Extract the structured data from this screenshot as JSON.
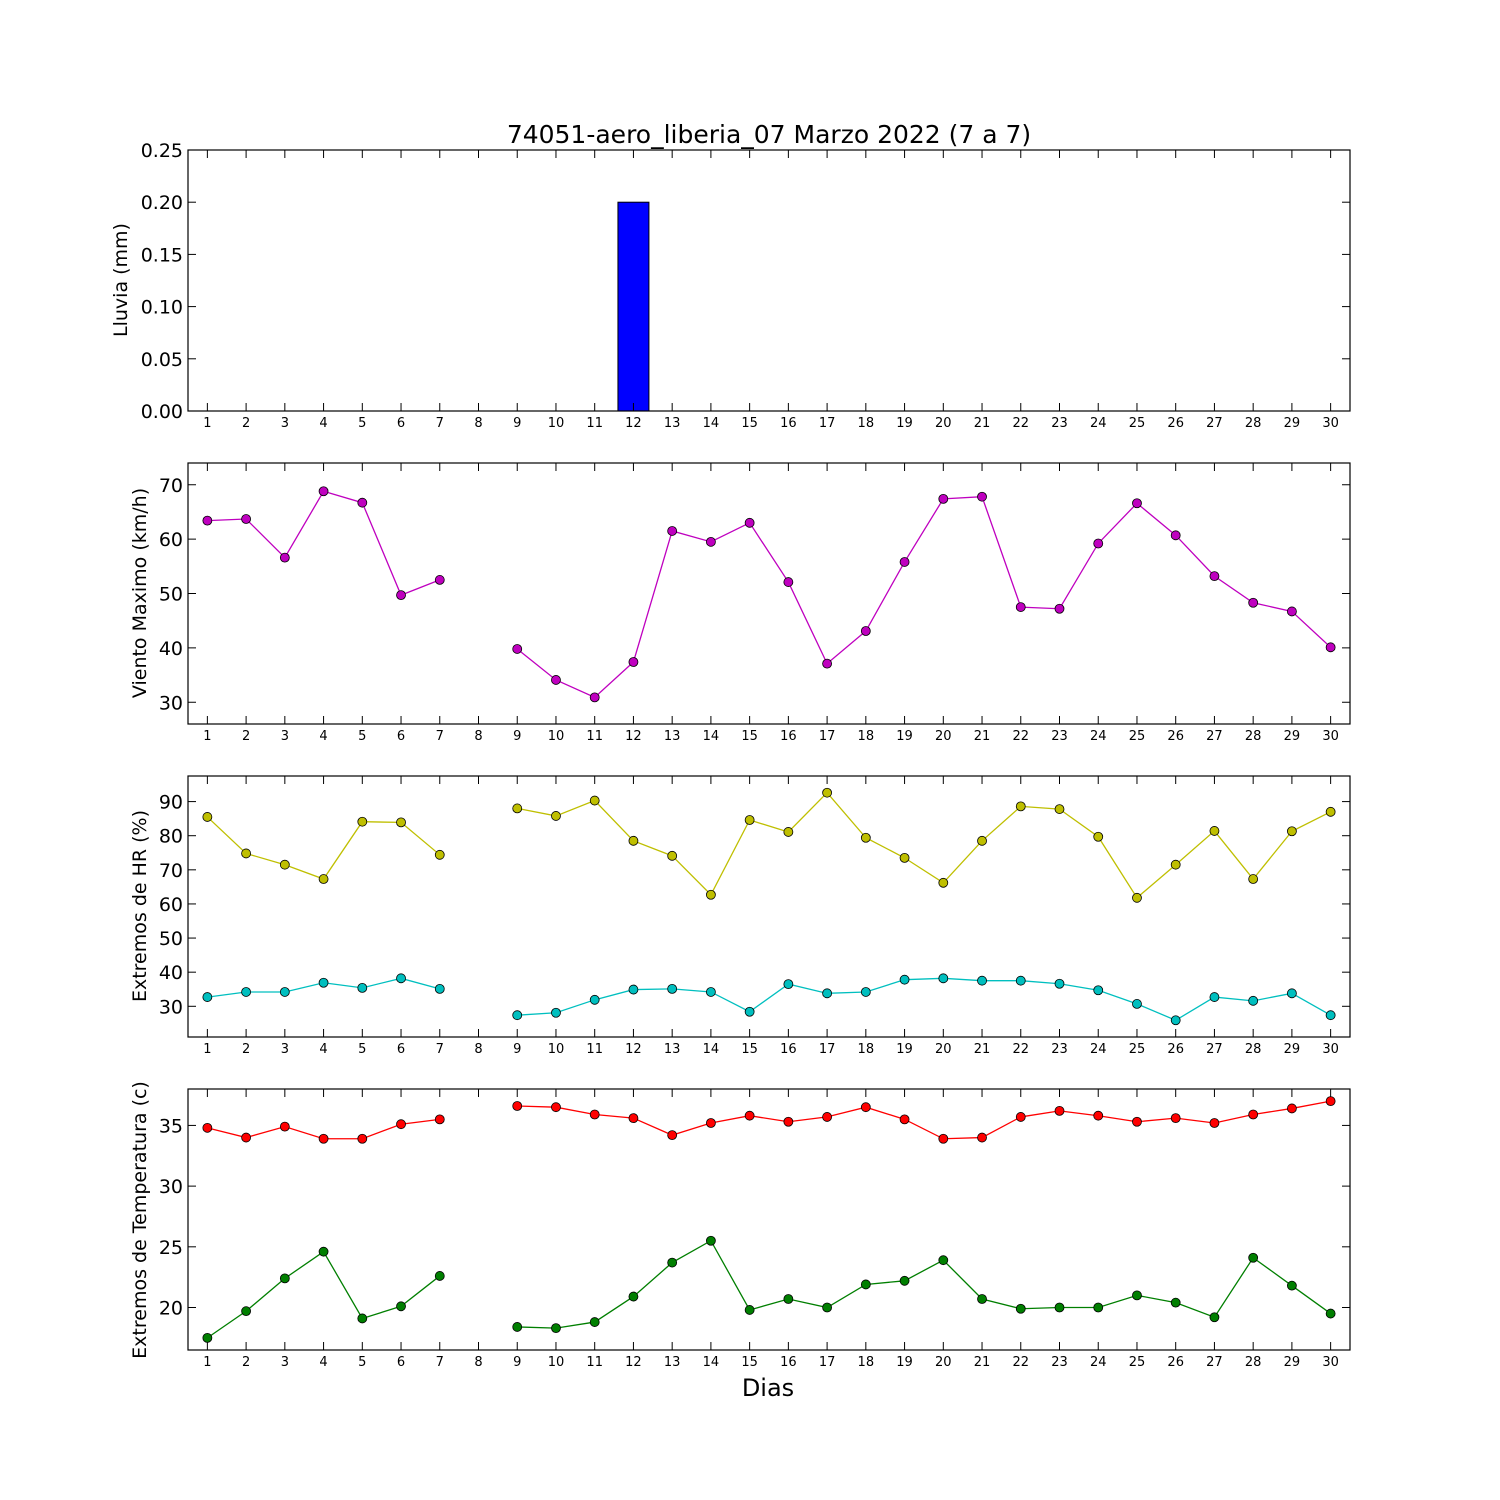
{
  "chart_data": [
    {
      "type": "bar",
      "title": "74051-aero_liberia_07 Marzo 2022  (7 a 7)",
      "ylabel": "Lluvia (mm)",
      "xlim": [
        0.5,
        30.5
      ],
      "ylim": [
        0,
        0.25
      ],
      "yticks": [
        "0.00",
        "0.05",
        "0.10",
        "0.15",
        "0.20",
        "0.25"
      ],
      "x": [
        1,
        2,
        3,
        4,
        5,
        6,
        7,
        8,
        9,
        10,
        11,
        12,
        13,
        14,
        15,
        16,
        17,
        18,
        19,
        20,
        21,
        22,
        23,
        24,
        25,
        26,
        27,
        28,
        29,
        30
      ],
      "series": [
        {
          "color": "#0000ff",
          "values": [
            0,
            0,
            0,
            0,
            0,
            0,
            0,
            0,
            0,
            0,
            0,
            0.2,
            0,
            0,
            0,
            0,
            0,
            0,
            0,
            0,
            0,
            0,
            0,
            0,
            0,
            0,
            0,
            0,
            0,
            0
          ]
        }
      ]
    },
    {
      "type": "line",
      "ylabel": "Viento Maximo (km/h)",
      "xlim": [
        0.5,
        30.5
      ],
      "ylim": [
        26,
        74
      ],
      "yticks": [
        "30",
        "40",
        "50",
        "60",
        "70"
      ],
      "x": [
        1,
        2,
        3,
        4,
        5,
        6,
        7,
        8,
        9,
        10,
        11,
        12,
        13,
        14,
        15,
        16,
        17,
        18,
        19,
        20,
        21,
        22,
        23,
        24,
        25,
        26,
        27,
        28,
        29,
        30
      ],
      "series": [
        {
          "color": "#bf00bf",
          "values": [
            63.4,
            63.7,
            56.6,
            68.8,
            66.7,
            49.7,
            52.5,
            null,
            39.8,
            34.1,
            30.9,
            37.4,
            61.5,
            59.5,
            63.0,
            52.1,
            37.1,
            43.1,
            55.8,
            67.4,
            67.8,
            47.5,
            47.2,
            59.2,
            66.6,
            60.7,
            53.2,
            48.3,
            46.7,
            40.1
          ]
        }
      ]
    },
    {
      "type": "line",
      "ylabel": "Extremos de HR (%)",
      "xlim": [
        0.5,
        30.5
      ],
      "ylim": [
        21,
        97.5
      ],
      "yticks": [
        "30",
        "40",
        "50",
        "60",
        "70",
        "80",
        "90"
      ],
      "x": [
        1,
        2,
        3,
        4,
        5,
        6,
        7,
        8,
        9,
        10,
        11,
        12,
        13,
        14,
        15,
        16,
        17,
        18,
        19,
        20,
        21,
        22,
        23,
        24,
        25,
        26,
        27,
        28,
        29,
        30
      ],
      "series": [
        {
          "color": "#bfbf00",
          "values": [
            85.5,
            74.8,
            71.5,
            67.3,
            84.1,
            83.9,
            74.4,
            null,
            88.0,
            85.8,
            90.3,
            78.5,
            74.1,
            62.7,
            84.6,
            81.1,
            92.6,
            79.4,
            73.5,
            66.2,
            78.5,
            88.6,
            87.8,
            79.7,
            61.8,
            71.5,
            81.4,
            67.3,
            81.3,
            87.0
          ]
        },
        {
          "color": "#00bfbf",
          "values": [
            32.7,
            34.2,
            34.2,
            36.9,
            35.4,
            38.2,
            35.1,
            null,
            27.4,
            28.1,
            31.9,
            34.9,
            35.1,
            34.2,
            28.4,
            36.5,
            33.8,
            34.2,
            37.8,
            38.2,
            37.5,
            37.5,
            36.6,
            34.7,
            30.7,
            25.9,
            32.7,
            31.6,
            33.8,
            27.4
          ]
        }
      ]
    },
    {
      "type": "line",
      "ylabel": "Extremos de Temperatura (c)",
      "xlabel": "Dias",
      "xlim": [
        0.5,
        30.5
      ],
      "ylim": [
        16.5,
        38
      ],
      "yticks": [
        "20",
        "25",
        "30",
        "35"
      ],
      "x": [
        1,
        2,
        3,
        4,
        5,
        6,
        7,
        8,
        9,
        10,
        11,
        12,
        13,
        14,
        15,
        16,
        17,
        18,
        19,
        20,
        21,
        22,
        23,
        24,
        25,
        26,
        27,
        28,
        29,
        30
      ],
      "series": [
        {
          "color": "#ff0000",
          "values": [
            34.8,
            34.0,
            34.9,
            33.9,
            33.9,
            35.1,
            35.5,
            null,
            36.6,
            36.5,
            35.9,
            35.6,
            34.2,
            35.2,
            35.8,
            35.3,
            35.7,
            36.5,
            35.5,
            33.9,
            34.0,
            35.7,
            36.2,
            35.8,
            35.3,
            35.6,
            35.2,
            35.9,
            36.4,
            37.0
          ]
        },
        {
          "color": "#007f00",
          "values": [
            17.5,
            19.7,
            22.4,
            24.6,
            19.1,
            20.1,
            22.6,
            null,
            18.4,
            18.3,
            18.8,
            20.9,
            23.7,
            25.5,
            19.8,
            20.7,
            20.0,
            21.9,
            22.2,
            23.9,
            20.7,
            19.9,
            20.0,
            20.0,
            21.0,
            20.4,
            19.2,
            24.1,
            21.8,
            19.5
          ]
        }
      ]
    }
  ]
}
